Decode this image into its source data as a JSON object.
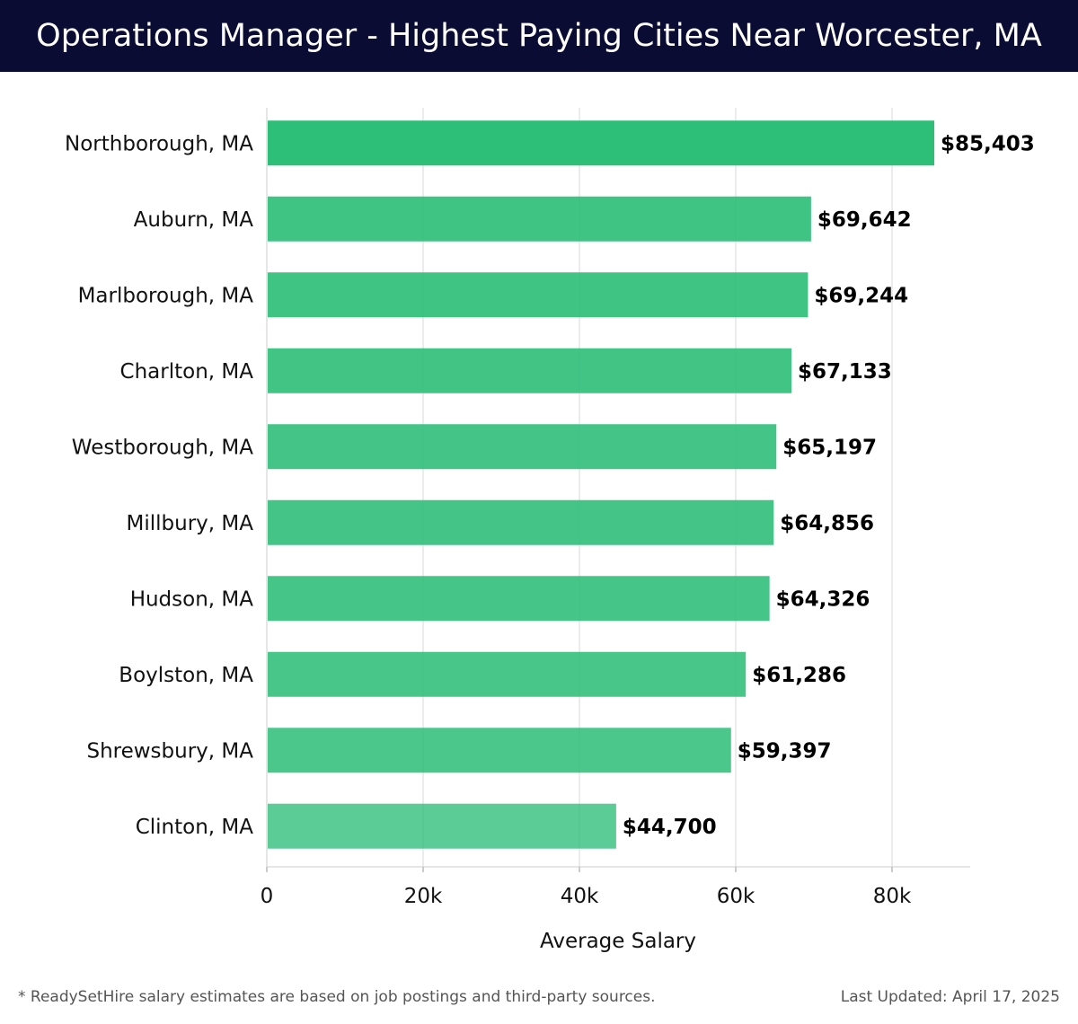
{
  "header": {
    "title": "Operations Manager - Highest Paying Cities Near Worcester, MA"
  },
  "chart_data": {
    "type": "bar",
    "orientation": "horizontal",
    "title": "Operations Manager - Highest Paying Cities Near Worcester, MA",
    "xlabel": "Average Salary",
    "ylabel": "",
    "xlim": [
      0,
      90000
    ],
    "xticks": [
      0,
      20000,
      40000,
      60000,
      80000
    ],
    "xtick_labels": [
      "0",
      "20k",
      "40k",
      "60k",
      "80k"
    ],
    "grid": true,
    "categories": [
      "Northborough, MA",
      "Auburn, MA",
      "Marlborough, MA",
      "Charlton, MA",
      "Westborough, MA",
      "Millbury, MA",
      "Hudson, MA",
      "Boylston, MA",
      "Shrewsbury, MA",
      "Clinton, MA"
    ],
    "values": [
      85403,
      69642,
      69244,
      67133,
      65197,
      64856,
      64326,
      61286,
      59397,
      44700
    ],
    "value_labels": [
      "$85,403",
      "$69,642",
      "$69,244",
      "$67,133",
      "$65,197",
      "$64,856",
      "$64,326",
      "$61,286",
      "$59,397",
      "$44,700"
    ],
    "bar_color": "#2dbe78",
    "label_color": "#000000",
    "grid_color": "#e6e6e6"
  },
  "footer": {
    "note": "* ReadySetHire salary estimates are based on job postings and third-party sources.",
    "updated": "Last Updated: April 17, 2025"
  },
  "colors": {
    "header_bg": "#0b0c33",
    "header_text": "#ffffff",
    "footer_text": "#555555"
  }
}
